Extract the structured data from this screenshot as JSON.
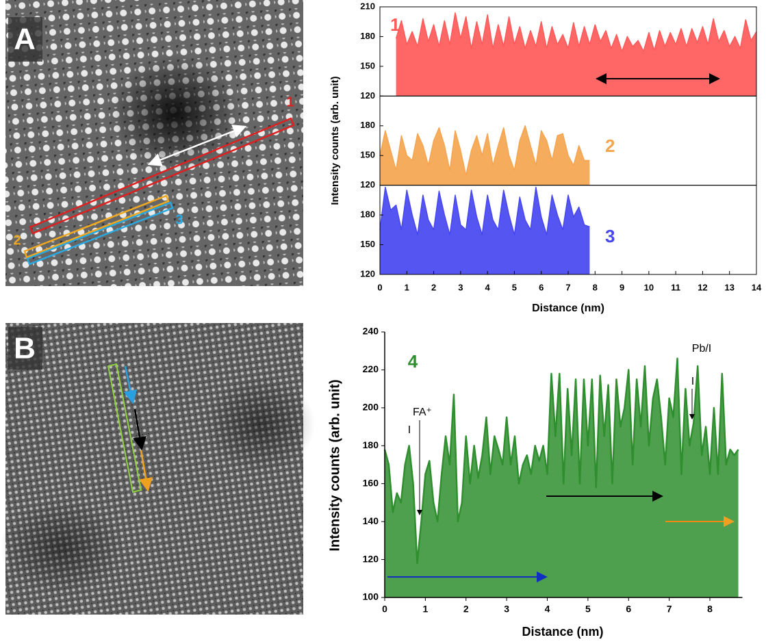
{
  "images": [
    {
      "label": "A",
      "markers": [
        "1",
        "2",
        "3"
      ]
    },
    {
      "label": "B"
    }
  ],
  "chart_data": [
    {
      "type": "area-stack",
      "xlabel": "Distance (nm)",
      "ylabel": "Intensity counts (arb. unit)",
      "xlim": [
        0,
        14
      ],
      "xticks": [
        0,
        1,
        2,
        3,
        4,
        5,
        6,
        7,
        8,
        9,
        10,
        11,
        12,
        13,
        14
      ],
      "panels": [
        {
          "label": "1",
          "color": "#ff5a5a",
          "ylim": [
            120,
            210
          ],
          "yticks": [
            120,
            150,
            180,
            210
          ],
          "x": [
            0.6,
            0.8,
            1,
            1.2,
            1.4,
            1.6,
            1.8,
            2,
            2.2,
            2.4,
            2.6,
            2.8,
            3,
            3.2,
            3.4,
            3.6,
            3.8,
            4,
            4.2,
            4.4,
            4.6,
            4.8,
            5,
            5.2,
            5.4,
            5.6,
            5.8,
            6,
            6.2,
            6.4,
            6.6,
            6.8,
            7,
            7.2,
            7.4,
            7.6,
            7.8,
            8,
            8.2,
            8.4,
            8.6,
            8.8,
            9,
            9.2,
            9.4,
            9.6,
            9.8,
            10,
            10.2,
            10.4,
            10.6,
            10.8,
            11,
            11.2,
            11.4,
            11.6,
            11.8,
            12,
            12.2,
            12.4,
            12.6,
            12.8,
            13,
            13.2,
            13.4,
            13.6,
            13.8,
            14
          ],
          "values": [
            178,
            196,
            172,
            185,
            170,
            198,
            175,
            192,
            170,
            196,
            172,
            204,
            178,
            200,
            168,
            195,
            172,
            202,
            168,
            192,
            170,
            200,
            172,
            190,
            168,
            186,
            170,
            195,
            168,
            190,
            172,
            182,
            168,
            194,
            170,
            190,
            172,
            192,
            175,
            186,
            168,
            182,
            165,
            180,
            170,
            176,
            165,
            184,
            166,
            186,
            170,
            184,
            172,
            188,
            170,
            188,
            174,
            190,
            172,
            198,
            175,
            186,
            170,
            180,
            168,
            197,
            176,
            185
          ]
        },
        {
          "label": "2",
          "color": "#f5a54f",
          "ylim": [
            120,
            210
          ],
          "yticks": [
            120,
            150,
            180
          ],
          "x": [
            0,
            0.2,
            0.4,
            0.6,
            0.8,
            1,
            1.2,
            1.4,
            1.6,
            1.8,
            2,
            2.2,
            2.4,
            2.6,
            2.8,
            3,
            3.2,
            3.4,
            3.6,
            3.8,
            4,
            4.2,
            4.4,
            4.6,
            4.8,
            5,
            5.2,
            5.4,
            5.6,
            5.8,
            6,
            6.2,
            6.4,
            6.6,
            6.8,
            7,
            7.2,
            7.4,
            7.6,
            7.8
          ],
          "values": [
            150,
            175,
            155,
            135,
            170,
            150,
            145,
            172,
            160,
            140,
            165,
            178,
            160,
            135,
            175,
            155,
            130,
            155,
            170,
            150,
            172,
            140,
            160,
            178,
            150,
            135,
            165,
            180,
            160,
            140,
            175,
            165,
            145,
            170,
            172,
            150,
            140,
            160,
            145,
            145
          ]
        },
        {
          "label": "3",
          "color": "#4747f0",
          "ylim": [
            120,
            210
          ],
          "yticks": [
            120,
            150,
            180
          ],
          "x": [
            0,
            0.2,
            0.4,
            0.6,
            0.8,
            1,
            1.2,
            1.4,
            1.6,
            1.8,
            2,
            2.2,
            2.4,
            2.6,
            2.8,
            3,
            3.2,
            3.4,
            3.6,
            3.8,
            4,
            4.2,
            4.4,
            4.6,
            4.8,
            5,
            5.2,
            5.4,
            5.6,
            5.8,
            6,
            6.2,
            6.4,
            6.6,
            6.8,
            7,
            7.2,
            7.4,
            7.6,
            7.8
          ],
          "values": [
            165,
            208,
            185,
            190,
            165,
            205,
            180,
            160,
            200,
            175,
            165,
            204,
            180,
            160,
            200,
            170,
            165,
            205,
            178,
            160,
            200,
            175,
            165,
            205,
            180,
            160,
            198,
            175,
            165,
            208,
            178,
            160,
            200,
            180,
            165,
            200,
            178,
            188,
            170,
            168
          ]
        }
      ]
    },
    {
      "type": "area",
      "label": "4",
      "color": "#2f8f2f",
      "xlabel": "Distance (nm)",
      "ylabel": "Intensity counts (arb. unit)",
      "xlim": [
        0,
        8.8
      ],
      "xticks": [
        0,
        1,
        2,
        3,
        4,
        5,
        6,
        7,
        8
      ],
      "ylim": [
        100,
        240
      ],
      "yticks": [
        100,
        120,
        140,
        160,
        180,
        200,
        220,
        240
      ],
      "annotations": [
        "FA⁺",
        "I",
        "I",
        "Pb/I"
      ],
      "x": [
        0,
        0.1,
        0.2,
        0.3,
        0.4,
        0.5,
        0.6,
        0.7,
        0.8,
        0.9,
        1,
        1.1,
        1.2,
        1.3,
        1.4,
        1.5,
        1.6,
        1.7,
        1.8,
        1.9,
        2,
        2.1,
        2.2,
        2.3,
        2.4,
        2.5,
        2.6,
        2.7,
        2.8,
        2.9,
        3,
        3.1,
        3.2,
        3.3,
        3.4,
        3.5,
        3.6,
        3.7,
        3.8,
        3.9,
        4,
        4.1,
        4.2,
        4.3,
        4.4,
        4.5,
        4.6,
        4.7,
        4.8,
        4.9,
        5,
        5.1,
        5.2,
        5.3,
        5.4,
        5.5,
        5.6,
        5.7,
        5.8,
        5.9,
        6,
        6.1,
        6.2,
        6.3,
        6.4,
        6.5,
        6.6,
        6.7,
        6.8,
        6.9,
        7,
        7.1,
        7.2,
        7.3,
        7.4,
        7.5,
        7.6,
        7.7,
        7.8,
        7.9,
        8,
        8.1,
        8.2,
        8.3,
        8.4,
        8.5,
        8.6,
        8.7
      ],
      "values": [
        178,
        170,
        145,
        155,
        150,
        170,
        180,
        160,
        118,
        140,
        165,
        172,
        150,
        140,
        165,
        185,
        170,
        207,
        140,
        150,
        185,
        160,
        180,
        163,
        175,
        195,
        165,
        185,
        178,
        170,
        195,
        170,
        185,
        160,
        170,
        175,
        165,
        180,
        172,
        180,
        165,
        218,
        185,
        218,
        160,
        210,
        175,
        215,
        160,
        215,
        180,
        215,
        158,
        217,
        185,
        212,
        160,
        215,
        190,
        200,
        220,
        170,
        215,
        190,
        222,
        180,
        205,
        215,
        195,
        170,
        205,
        195,
        226,
        165,
        210,
        180,
        192,
        222,
        175,
        190,
        165,
        200,
        165,
        218,
        170,
        178,
        175,
        178
      ]
    }
  ]
}
